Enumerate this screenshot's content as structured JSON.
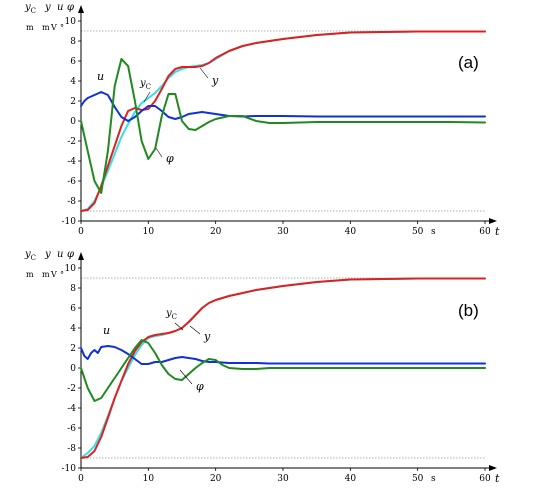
{
  "chart_data": [
    {
      "type": "line",
      "panel_label": "(a)",
      "y_header": [
        "yC",
        "y",
        "u",
        "φ"
      ],
      "y_units": [
        "m",
        "m",
        "V",
        "°"
      ],
      "x_name": "t",
      "x_unit": "s",
      "xlim": [
        0,
        60
      ],
      "ylim": [
        -10,
        10
      ],
      "x_ticks": [
        0,
        10,
        20,
        30,
        40,
        50,
        60
      ],
      "y_ticks": [
        -10,
        -8,
        -6,
        -4,
        -2,
        0,
        2,
        4,
        6,
        8,
        10
      ],
      "reference_lines": [
        9,
        -9
      ],
      "grid": false,
      "series": [
        {
          "name": "yC",
          "color": "#33e0e8",
          "x": [
            0,
            1,
            2,
            3,
            4,
            5,
            6,
            7,
            8,
            9,
            10,
            11,
            12,
            13,
            14,
            15,
            16,
            17,
            18,
            19,
            20,
            22,
            24,
            26,
            28,
            30,
            35,
            40,
            45,
            50,
            55,
            60
          ],
          "y": [
            -9,
            -8.8,
            -8,
            -6.6,
            -5,
            -3.3,
            -1.6,
            -0.3,
            0.9,
            1.8,
            2.3,
            2.8,
            3.5,
            4.3,
            4.9,
            5.2,
            5.4,
            5.5,
            5.6,
            5.8,
            6.2,
            7,
            7.5,
            7.8,
            8,
            8.2,
            8.6,
            8.85,
            8.9,
            8.95,
            8.95,
            8.95
          ]
        },
        {
          "name": "y",
          "color": "#e02020",
          "x": [
            0,
            1,
            2,
            3,
            4,
            5,
            6,
            7,
            8,
            9,
            10,
            11,
            12,
            13,
            14,
            15,
            16,
            17,
            18,
            19,
            20,
            22,
            24,
            26,
            28,
            30,
            35,
            40,
            45,
            50,
            55,
            60
          ],
          "y": [
            -9,
            -8.9,
            -8.2,
            -6.5,
            -4.5,
            -2.5,
            -0.5,
            1,
            1.3,
            1.1,
            1.2,
            2,
            3.2,
            4.5,
            5.2,
            5.4,
            5.4,
            5.4,
            5.5,
            5.8,
            6.3,
            7,
            7.5,
            7.8,
            8,
            8.2,
            8.6,
            8.85,
            8.9,
            8.95,
            8.95,
            8.95
          ]
        },
        {
          "name": "u",
          "color": "#1030d8",
          "x": [
            0,
            0.5,
            1,
            2,
            3,
            4,
            5,
            6,
            7,
            8,
            9,
            10,
            11,
            12,
            13,
            14,
            15,
            16,
            17,
            18,
            19,
            20,
            22,
            24,
            26,
            28,
            30,
            35,
            40,
            45,
            50,
            55,
            60
          ],
          "y": [
            1.5,
            2,
            2.3,
            2.6,
            2.9,
            2.6,
            1.4,
            0.4,
            0,
            0.4,
            1,
            1.5,
            1.5,
            1,
            0.4,
            0.2,
            0.4,
            0.7,
            0.8,
            0.9,
            0.8,
            0.7,
            0.5,
            0.45,
            0.5,
            0.5,
            0.5,
            0.45,
            0.45,
            0.45,
            0.45,
            0.45,
            0.45
          ]
        },
        {
          "name": "φ",
          "color": "#208a20",
          "x": [
            0,
            1,
            2,
            3,
            4,
            5,
            6,
            7,
            8,
            9,
            10,
            11,
            12,
            13,
            14,
            15,
            16,
            17,
            18,
            19,
            20,
            22,
            24,
            26,
            28,
            30,
            35,
            40,
            45,
            50,
            55,
            60
          ],
          "y": [
            0,
            -3,
            -6,
            -7.2,
            -3,
            3.5,
            6.2,
            5.5,
            2,
            -2,
            -3.8,
            -2.8,
            0.5,
            2.7,
            2.7,
            0,
            -0.8,
            -0.9,
            -0.5,
            -0.1,
            0.2,
            0.5,
            0.5,
            0,
            -0.2,
            -0.2,
            -0.1,
            -0.1,
            -0.1,
            -0.1,
            -0.1,
            -0.15
          ]
        }
      ],
      "annotations": [
        {
          "text": "u",
          "near_series": "u"
        },
        {
          "text": "yC",
          "near_series": "yC"
        },
        {
          "text": "y",
          "near_series": "y"
        },
        {
          "text": "φ",
          "near_series": "φ"
        }
      ]
    },
    {
      "type": "line",
      "panel_label": "(b)",
      "y_header": [
        "yC",
        "y",
        "u",
        "φ"
      ],
      "y_units": [
        "m",
        "m",
        "V",
        "°"
      ],
      "x_name": "t",
      "x_unit": "s",
      "xlim": [
        0,
        60
      ],
      "ylim": [
        -10,
        10
      ],
      "x_ticks": [
        0,
        10,
        20,
        30,
        40,
        50,
        60
      ],
      "y_ticks": [
        -10,
        -8,
        -6,
        -4,
        -2,
        0,
        2,
        4,
        6,
        8,
        10
      ],
      "reference_lines": [
        9,
        -9
      ],
      "grid": false,
      "series": [
        {
          "name": "yC",
          "color": "#33e0e8",
          "x": [
            0,
            1,
            2,
            3,
            4,
            5,
            6,
            7,
            8,
            9,
            10,
            11,
            12,
            13,
            14,
            15,
            16,
            17,
            18,
            19,
            20,
            22,
            24,
            26,
            28,
            30,
            35,
            40,
            45,
            50,
            55,
            60
          ],
          "y": [
            -9,
            -8.5,
            -7.8,
            -6.5,
            -4.8,
            -3,
            -1.3,
            0,
            1.3,
            2.3,
            3,
            3.2,
            3.3,
            3.5,
            3.7,
            4,
            4.6,
            5.3,
            6,
            6.5,
            6.8,
            7.2,
            7.5,
            7.8,
            8,
            8.2,
            8.6,
            8.85,
            8.9,
            8.95,
            8.95,
            8.95
          ]
        },
        {
          "name": "y",
          "color": "#e02020",
          "x": [
            0,
            1,
            2,
            3,
            4,
            5,
            6,
            7,
            8,
            9,
            10,
            11,
            12,
            13,
            14,
            15,
            16,
            17,
            18,
            19,
            20,
            22,
            24,
            26,
            28,
            30,
            35,
            40,
            45,
            50,
            55,
            60
          ],
          "y": [
            -9,
            -8.9,
            -8.3,
            -6.9,
            -5,
            -3,
            -1.3,
            0.4,
            1.7,
            2.6,
            3.1,
            3.3,
            3.4,
            3.5,
            3.7,
            4,
            4.6,
            5.3,
            6,
            6.5,
            6.8,
            7.2,
            7.5,
            7.8,
            8,
            8.2,
            8.6,
            8.85,
            8.9,
            8.95,
            8.95,
            8.95
          ]
        },
        {
          "name": "u",
          "color": "#1030d8",
          "x": [
            0,
            0.5,
            1,
            1.5,
            2,
            2.5,
            3,
            4,
            5,
            6,
            7,
            8,
            9,
            10,
            11,
            12,
            13,
            14,
            15,
            16,
            17,
            18,
            19,
            20,
            22,
            24,
            26,
            28,
            30,
            35,
            40,
            45,
            50,
            55,
            60
          ],
          "y": [
            2,
            1.2,
            0.9,
            1.5,
            1.8,
            1.5,
            2.1,
            2.2,
            2.1,
            1.8,
            1.4,
            0.9,
            0.4,
            0.4,
            0.6,
            0.6,
            0.8,
            1,
            1.1,
            1,
            0.9,
            0.7,
            0.6,
            0.6,
            0.5,
            0.5,
            0.5,
            0.45,
            0.45,
            0.45,
            0.45,
            0.45,
            0.45,
            0.45,
            0.45
          ]
        },
        {
          "name": "φ",
          "color": "#208a20",
          "x": [
            0,
            1,
            2,
            3,
            4,
            5,
            6,
            7,
            8,
            9,
            10,
            11,
            12,
            13,
            14,
            15,
            16,
            17,
            18,
            19,
            20,
            21,
            22,
            24,
            26,
            28,
            30,
            35,
            40,
            45,
            50,
            55,
            60
          ],
          "y": [
            0,
            -2,
            -3.3,
            -3,
            -2,
            -1,
            0,
            1,
            2,
            2.8,
            2.5,
            1.5,
            0.3,
            -0.6,
            -1.1,
            -1.2,
            -0.6,
            0,
            0.5,
            0.9,
            0.8,
            0.3,
            0,
            -0.1,
            -0.1,
            0,
            0,
            0,
            0,
            0,
            0,
            0,
            0
          ]
        }
      ],
      "annotations": [
        {
          "text": "u",
          "near_series": "u"
        },
        {
          "text": "yC",
          "near_series": "yC"
        },
        {
          "text": "y",
          "near_series": "y"
        },
        {
          "text": "φ",
          "near_series": "φ"
        }
      ]
    }
  ]
}
